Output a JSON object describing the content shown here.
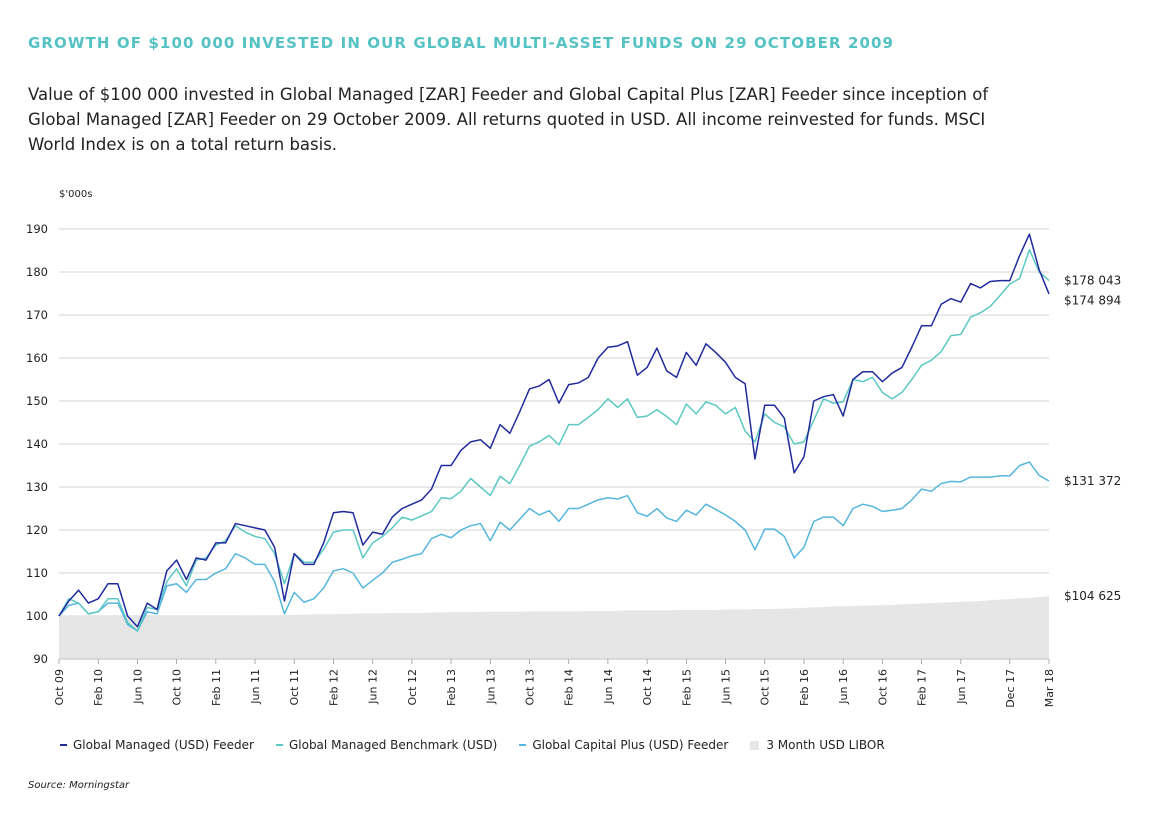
{
  "title": "GROWTH OF $100 000 INVESTED IN OUR GLOBAL MULTI-ASSET FUNDS ON 29 OCTOBER 2009",
  "subtitle": "Value of $100 000 invested in Global Managed [ZAR] Feeder and Global Capital Plus [ZAR] Feeder since inception of Global Managed [ZAR] Feeder on 29 October 2009. All returns quoted in USD. All income reinvested for funds. MSCI World Index is on a total return basis.",
  "source": "Source: Morningstar",
  "colors": {
    "managed": "#1f2a9c",
    "benchmark": "#5cc8c4",
    "capital_plus": "#56b6dc",
    "libor": "#e6e6e6",
    "title": "#55c2c3"
  },
  "chart_data": {
    "type": "line",
    "ylabel": "$'000s",
    "ylim": [
      90,
      190
    ],
    "yticks": [
      90,
      100,
      110,
      120,
      130,
      140,
      150,
      160,
      170,
      180,
      190
    ],
    "xlim": [
      0,
      101
    ],
    "xtick_labels": [
      {
        "i": 0,
        "label": "Oct 09"
      },
      {
        "i": 4,
        "label": "Feb 10"
      },
      {
        "i": 8,
        "label": "Jun 10"
      },
      {
        "i": 12,
        "label": "Oct 10"
      },
      {
        "i": 16,
        "label": "Feb 11"
      },
      {
        "i": 20,
        "label": "Jun 11"
      },
      {
        "i": 24,
        "label": "Oct 11"
      },
      {
        "i": 28,
        "label": "Feb 12"
      },
      {
        "i": 32,
        "label": "Jun 12"
      },
      {
        "i": 36,
        "label": "Oct 12"
      },
      {
        "i": 40,
        "label": "Feb 13"
      },
      {
        "i": 44,
        "label": "Jun 13"
      },
      {
        "i": 48,
        "label": "Oct 13"
      },
      {
        "i": 52,
        "label": "Feb 14"
      },
      {
        "i": 56,
        "label": "Jun 14"
      },
      {
        "i": 60,
        "label": "Oct 14"
      },
      {
        "i": 64,
        "label": "Feb 15"
      },
      {
        "i": 68,
        "label": "Jun 15"
      },
      {
        "i": 72,
        "label": "Oct 15"
      },
      {
        "i": 76,
        "label": "Feb 16"
      },
      {
        "i": 80,
        "label": "Jun 16"
      },
      {
        "i": 84,
        "label": "Oct 16"
      },
      {
        "i": 88,
        "label": "Feb 17"
      },
      {
        "i": 92,
        "label": "Jun 17"
      },
      {
        "i": 97,
        "label": "Dec 17"
      },
      {
        "i": 101,
        "label": "Mar 18"
      }
    ],
    "end_labels": [
      {
        "series": "Global Managed Benchmark (USD)",
        "label": "$178 043"
      },
      {
        "series": "Global Managed (USD) Feeder",
        "label": "$174 894"
      },
      {
        "series": "Global Capital Plus (USD) Feeder",
        "label": "$131 372"
      },
      {
        "series": "3 Month USD LIBOR",
        "label": "$104 625"
      }
    ],
    "series": [
      {
        "name": "Global Managed (USD) Feeder",
        "style": "line",
        "color": "#1f2a9c",
        "values": [
          100,
          103.5,
          106,
          103,
          104,
          107.5,
          107.5,
          100,
          97.5,
          103,
          101.5,
          110.5,
          113,
          108.5,
          113.5,
          113,
          117,
          117,
          121.5,
          121,
          120.5,
          120,
          116,
          103.5,
          114.5,
          112,
          112,
          117,
          124,
          124.3,
          124,
          116.5,
          119.5,
          119,
          123,
          125,
          126,
          127,
          129.5,
          135,
          135,
          138.5,
          140.5,
          141,
          139,
          144.5,
          142.5,
          147.5,
          152.8,
          153.5,
          155,
          149.5,
          153.8,
          154.2,
          155.5,
          160,
          162.5,
          162.8,
          163.8,
          156,
          157.8,
          162.3,
          157,
          155.5,
          161.3,
          158.3,
          163.3,
          161.3,
          159,
          155.5,
          154,
          136.5,
          149,
          149,
          146,
          133.3,
          137,
          150,
          151,
          151.5,
          146.5,
          155,
          156.8,
          156.8,
          154.5,
          156.5,
          157.8,
          162.5,
          167.5,
          167.5,
          172.5,
          173.8,
          173,
          177.3,
          176.3,
          177.8,
          178,
          178,
          183.8,
          188.8,
          180.5,
          174.9
        ]
      },
      {
        "name": "Global Managed Benchmark (USD)",
        "style": "line",
        "color": "#5cc8c4",
        "values": [
          100,
          104,
          103,
          100.5,
          101,
          104,
          104,
          98.5,
          96.5,
          102,
          101.5,
          108,
          111,
          107,
          113,
          113.5,
          116.5,
          117.5,
          121,
          119.5,
          118.5,
          118,
          114.5,
          107.5,
          114.5,
          112.5,
          112.5,
          115.5,
          119.5,
          120,
          120,
          113.5,
          117,
          118.5,
          120.5,
          123,
          122.3,
          123.3,
          124.3,
          127.5,
          127.3,
          129,
          132,
          130,
          128,
          132.5,
          130.8,
          135,
          139.5,
          140.5,
          142,
          139.8,
          144.5,
          144.5,
          146.2,
          148,
          150.5,
          148.5,
          150.5,
          146.2,
          146.5,
          148,
          146.4,
          144.5,
          149.3,
          147,
          149.8,
          149,
          147,
          148.5,
          143,
          140.5,
          147,
          145,
          144,
          140,
          140.5,
          145.5,
          150.5,
          149.5,
          149.8,
          155,
          154.5,
          155.5,
          152,
          150.5,
          152,
          155,
          158.3,
          159.5,
          161.5,
          165.2,
          165.5,
          169.5,
          170.5,
          172,
          174.5,
          177.2,
          178.5,
          185.2,
          180,
          178
        ]
      },
      {
        "name": "Global Capital Plus (USD) Feeder",
        "style": "line",
        "color": "#56b6dc",
        "values": [
          100,
          102.5,
          103,
          100.5,
          101,
          103,
          103,
          98,
          96.5,
          101,
          100.5,
          107,
          107.5,
          105.5,
          108.5,
          108.5,
          110,
          111,
          114.5,
          113.5,
          112,
          112,
          108,
          100.5,
          105.5,
          103.2,
          104,
          106.5,
          110.5,
          111,
          110,
          106.5,
          108.3,
          110,
          112.5,
          113.2,
          114,
          114.5,
          118,
          119,
          118.2,
          120,
          121,
          121.5,
          117.5,
          121.8,
          120,
          122.5,
          125,
          123.5,
          124.5,
          122,
          125,
          125,
          126,
          127,
          127.5,
          127.2,
          128,
          124,
          123.2,
          125,
          122.8,
          122,
          124.6,
          123.5,
          126,
          124.8,
          123.5,
          122,
          120,
          115.4,
          120.2,
          120.2,
          118.5,
          113.5,
          116,
          122,
          123,
          123,
          121,
          125,
          126,
          125.5,
          124.3,
          124.6,
          125,
          127,
          129.5,
          129,
          130.8,
          131.3,
          131.2,
          132.3,
          132.3,
          132.3,
          132.6,
          132.6,
          135,
          135.8,
          132.7,
          131.4
        ]
      },
      {
        "name": "3 Month USD LIBOR",
        "style": "area",
        "color": "#e6e6e6",
        "values": [
          100,
          100,
          100,
          100,
          100,
          100,
          100,
          100,
          100,
          100,
          100,
          100,
          100,
          100,
          100,
          100,
          100,
          100,
          100,
          100,
          100.2,
          100.2,
          100.2,
          100.2,
          100.3,
          100.3,
          100.4,
          100.4,
          100.4,
          100.5,
          100.5,
          100.6,
          100.6,
          100.6,
          100.7,
          100.7,
          100.7,
          100.7,
          100.8,
          100.8,
          100.9,
          100.9,
          100.9,
          101,
          101,
          101,
          101,
          101,
          101.1,
          101.1,
          101.1,
          101.1,
          101.1,
          101.1,
          101.2,
          101.2,
          101.2,
          101.2,
          101.3,
          101.3,
          101.3,
          101.3,
          101.3,
          101.4,
          101.4,
          101.4,
          101.4,
          101.4,
          101.5,
          101.5,
          101.5,
          101.6,
          101.6,
          101.7,
          101.7,
          101.8,
          101.9,
          102,
          102.1,
          102.2,
          102.2,
          102.3,
          102.4,
          102.4,
          102.5,
          102.6,
          102.7,
          102.8,
          102.9,
          103,
          103.1,
          103.2,
          103.3,
          103.4,
          103.5,
          103.7,
          103.8,
          103.9,
          104.1,
          104.2,
          104.4,
          104.6
        ]
      }
    ]
  }
}
